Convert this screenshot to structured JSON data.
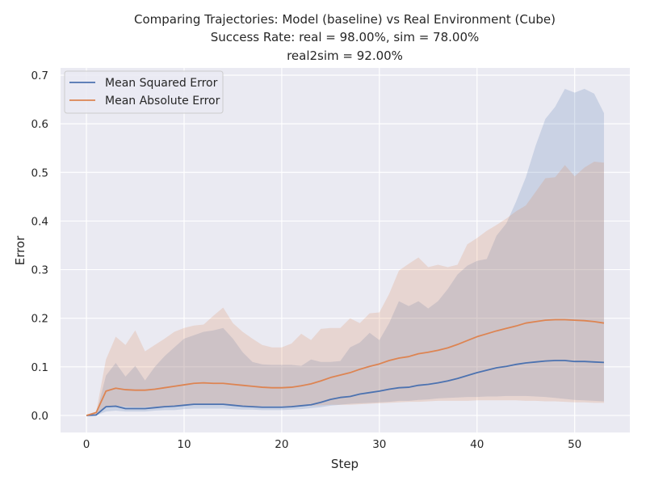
{
  "chart_data": {
    "type": "line",
    "title": "Comparing Trajectories: Model (baseline) vs Real Environment (Cube)",
    "subtitle_line2": "Success Rate: real = 98.00%, sim = 78.00%",
    "subtitle_line3": "real2sim = 92.00%",
    "xlabel": "Step",
    "ylabel": "Error",
    "xlim": [
      -2.65,
      55.65
    ],
    "ylim": [
      -0.035,
      0.715
    ],
    "xticks": [
      0,
      10,
      20,
      30,
      40,
      50
    ],
    "yticks": [
      0.0,
      0.1,
      0.2,
      0.3,
      0.4,
      0.5,
      0.6,
      0.7
    ],
    "xtick_labels": [
      "0",
      "10",
      "20",
      "30",
      "40",
      "50"
    ],
    "ytick_labels": [
      "0.0",
      "0.1",
      "0.2",
      "0.3",
      "0.4",
      "0.5",
      "0.6",
      "0.7"
    ],
    "grid": true,
    "legend_position": "upper-left",
    "x": [
      0,
      1,
      2,
      3,
      4,
      5,
      6,
      7,
      8,
      9,
      10,
      11,
      12,
      13,
      14,
      15,
      16,
      17,
      18,
      19,
      20,
      21,
      22,
      23,
      24,
      25,
      26,
      27,
      28,
      29,
      30,
      31,
      32,
      33,
      34,
      35,
      36,
      37,
      38,
      39,
      40,
      41,
      42,
      43,
      44,
      45,
      46,
      47,
      48,
      49,
      50,
      51,
      52,
      53
    ],
    "series": [
      {
        "name": "Mean Squared Error",
        "color": "#4c72b0",
        "values": [
          0.0,
          0.001,
          0.018,
          0.019,
          0.014,
          0.014,
          0.014,
          0.016,
          0.018,
          0.019,
          0.021,
          0.023,
          0.023,
          0.023,
          0.023,
          0.021,
          0.019,
          0.018,
          0.017,
          0.017,
          0.017,
          0.018,
          0.02,
          0.022,
          0.027,
          0.033,
          0.037,
          0.039,
          0.044,
          0.047,
          0.05,
          0.054,
          0.057,
          0.058,
          0.062,
          0.064,
          0.067,
          0.071,
          0.076,
          0.082,
          0.088,
          0.093,
          0.098,
          0.101,
          0.105,
          0.108,
          0.11,
          0.112,
          0.113,
          0.113,
          0.111,
          0.111,
          0.11,
          0.109
        ],
        "upper": [
          0.0,
          0.003,
          0.082,
          0.108,
          0.08,
          0.102,
          0.072,
          0.1,
          0.122,
          0.14,
          0.158,
          0.165,
          0.172,
          0.175,
          0.18,
          0.158,
          0.13,
          0.11,
          0.105,
          0.104,
          0.104,
          0.104,
          0.102,
          0.115,
          0.11,
          0.11,
          0.112,
          0.14,
          0.15,
          0.17,
          0.155,
          0.19,
          0.235,
          0.225,
          0.235,
          0.22,
          0.235,
          0.26,
          0.29,
          0.308,
          0.318,
          0.322,
          0.37,
          0.395,
          0.44,
          0.49,
          0.555,
          0.61,
          0.635,
          0.672,
          0.664,
          0.672,
          0.662,
          0.622
        ],
        "lower": [
          0.0,
          0.0,
          0.008,
          0.01,
          0.008,
          0.008,
          0.008,
          0.01,
          0.011,
          0.011,
          0.013,
          0.014,
          0.014,
          0.014,
          0.014,
          0.013,
          0.012,
          0.012,
          0.011,
          0.011,
          0.011,
          0.012,
          0.013,
          0.015,
          0.017,
          0.02,
          0.022,
          0.024,
          0.025,
          0.026,
          0.027,
          0.028,
          0.03,
          0.03,
          0.032,
          0.033,
          0.035,
          0.036,
          0.037,
          0.038,
          0.038,
          0.039,
          0.039,
          0.04,
          0.04,
          0.04,
          0.039,
          0.038,
          0.036,
          0.034,
          0.032,
          0.031,
          0.03,
          0.029
        ]
      },
      {
        "name": "Mean Absolute Error",
        "color": "#dd8452",
        "values": [
          0.0,
          0.006,
          0.05,
          0.056,
          0.053,
          0.052,
          0.052,
          0.054,
          0.057,
          0.06,
          0.063,
          0.066,
          0.067,
          0.066,
          0.066,
          0.064,
          0.062,
          0.06,
          0.058,
          0.057,
          0.057,
          0.058,
          0.061,
          0.065,
          0.071,
          0.078,
          0.083,
          0.088,
          0.095,
          0.101,
          0.106,
          0.113,
          0.118,
          0.121,
          0.127,
          0.13,
          0.134,
          0.139,
          0.146,
          0.154,
          0.162,
          0.168,
          0.174,
          0.179,
          0.184,
          0.19,
          0.193,
          0.196,
          0.197,
          0.197,
          0.196,
          0.195,
          0.193,
          0.19
        ],
        "upper": [
          0.0,
          0.008,
          0.115,
          0.162,
          0.145,
          0.175,
          0.132,
          0.145,
          0.158,
          0.172,
          0.18,
          0.185,
          0.187,
          0.205,
          0.222,
          0.19,
          0.172,
          0.158,
          0.145,
          0.14,
          0.14,
          0.148,
          0.168,
          0.155,
          0.178,
          0.18,
          0.18,
          0.2,
          0.19,
          0.21,
          0.212,
          0.25,
          0.298,
          0.312,
          0.325,
          0.305,
          0.31,
          0.305,
          0.31,
          0.352,
          0.365,
          0.38,
          0.392,
          0.405,
          0.42,
          0.432,
          0.46,
          0.488,
          0.49,
          0.515,
          0.492,
          0.51,
          0.522,
          0.52
        ],
        "lower": [
          0.0,
          0.002,
          0.018,
          0.02,
          0.018,
          0.017,
          0.017,
          0.018,
          0.019,
          0.02,
          0.021,
          0.022,
          0.022,
          0.022,
          0.022,
          0.021,
          0.02,
          0.019,
          0.019,
          0.019,
          0.019,
          0.019,
          0.02,
          0.02,
          0.021,
          0.022,
          0.022,
          0.022,
          0.023,
          0.024,
          0.025,
          0.026,
          0.027,
          0.028,
          0.028,
          0.029,
          0.03,
          0.03,
          0.03,
          0.03,
          0.031,
          0.031,
          0.031,
          0.031,
          0.031,
          0.03,
          0.03,
          0.029,
          0.029,
          0.028,
          0.027,
          0.027,
          0.026,
          0.026
        ]
      }
    ]
  },
  "style": {
    "axes_background": "#eaeaf2",
    "grid_color": "#ffffff",
    "text_color": "#262626",
    "band_opacity": 0.2
  }
}
